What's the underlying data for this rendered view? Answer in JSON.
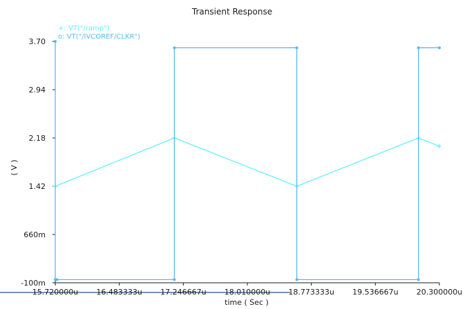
{
  "chart_data": {
    "type": "line",
    "title": "Transient Response",
    "xlabel": "time ( Sec )",
    "ylabel": "( V )",
    "x_tick_labels": [
      "15.720000u",
      "16.483333u",
      "17.246667u",
      "18.010000u",
      "18.773333u",
      "19.536667u",
      "20.300000u"
    ],
    "y_tick_labels": [
      "-100m",
      "660m",
      "1.42",
      "2.18",
      "2.94",
      "3.70"
    ],
    "xlim": [
      15.72,
      20.3
    ],
    "ylim": [
      -0.1,
      3.7
    ],
    "x_unit": "us",
    "y_unit": "V",
    "grid": false,
    "legend_position": "top-left",
    "series": [
      {
        "name": "VT(\"/ramp\")",
        "marker": "+",
        "color": "#66f0ff",
        "x": [
          15.72,
          17.14,
          18.6,
          20.05,
          20.3
        ],
        "y": [
          1.42,
          2.18,
          1.42,
          2.18,
          2.05
        ]
      },
      {
        "name": "VT(\"/IVCOREF/CLKR\")",
        "marker": "o",
        "color": "#55bbee",
        "x": [
          15.72,
          15.72,
          15.74,
          17.14,
          17.14,
          18.6,
          18.6,
          20.05,
          20.05,
          20.3
        ],
        "y": [
          3.7,
          -0.05,
          -0.05,
          -0.05,
          3.6,
          3.6,
          -0.05,
          -0.05,
          3.6,
          3.6
        ]
      }
    ]
  }
}
